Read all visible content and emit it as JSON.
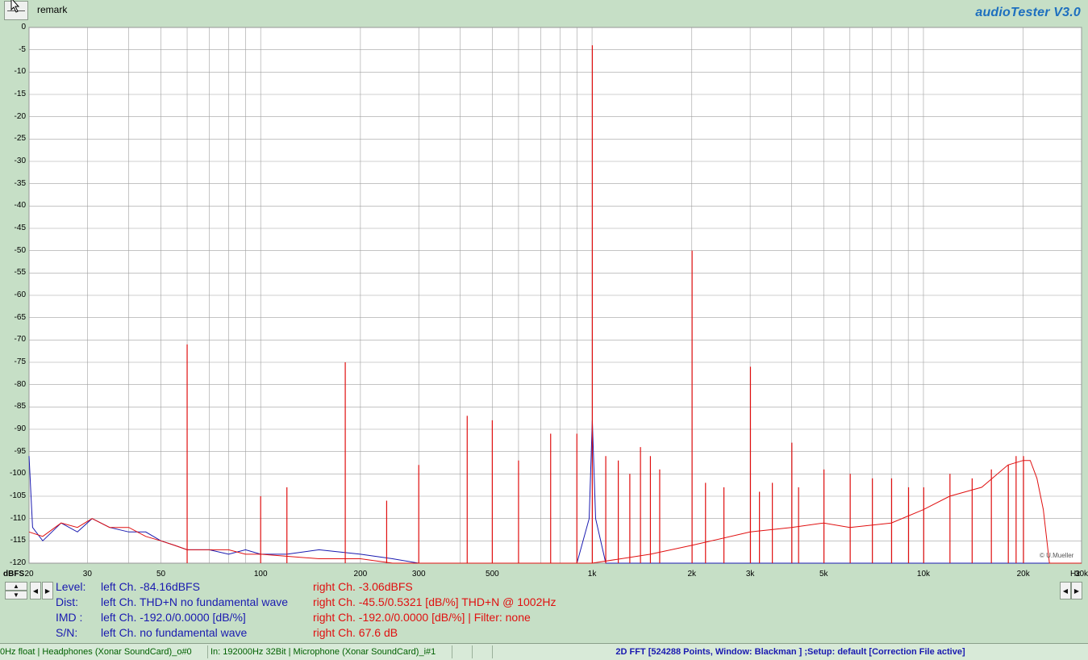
{
  "app": {
    "title": "audioTester  V3.0",
    "remark_label": "remark",
    "credit": "© U.Mueller"
  },
  "colors": {
    "background": "#c6dfc6",
    "plot_bg": "#ffffff",
    "grid": "#a0a0a0",
    "left_channel": "#1a1ab0",
    "right_channel": "#e01010",
    "title": "#1d6fbf"
  },
  "chart_data": {
    "type": "line",
    "title": "",
    "xlabel": "Hz",
    "ylabel": "dBFS",
    "x_scale": "log",
    "xlim": [
      20,
      30000
    ],
    "ylim": [
      -120,
      0
    ],
    "grid": true,
    "x_ticks": [
      {
        "value": 20,
        "label": "20"
      },
      {
        "value": 30,
        "label": "30"
      },
      {
        "value": 50,
        "label": "50"
      },
      {
        "value": 100,
        "label": "100"
      },
      {
        "value": 200,
        "label": "200"
      },
      {
        "value": 300,
        "label": "300"
      },
      {
        "value": 500,
        "label": "500"
      },
      {
        "value": 1000,
        "label": "1k"
      },
      {
        "value": 2000,
        "label": "2k"
      },
      {
        "value": 3000,
        "label": "3k"
      },
      {
        "value": 5000,
        "label": "5k"
      },
      {
        "value": 10000,
        "label": "10k"
      },
      {
        "value": 20000,
        "label": "20k"
      },
      {
        "value": 30000,
        "label": "30k"
      }
    ],
    "y_ticks": [
      0,
      -5,
      -10,
      -15,
      -20,
      -25,
      -30,
      -35,
      -40,
      -45,
      -50,
      -55,
      -60,
      -65,
      -70,
      -75,
      -80,
      -85,
      -90,
      -95,
      -100,
      -105,
      -110,
      -115,
      -120
    ],
    "series": [
      {
        "channel": "left",
        "color": "#1a1ab0",
        "points": [
          [
            20,
            -96
          ],
          [
            20.5,
            -112
          ],
          [
            22,
            -115
          ],
          [
            25,
            -111
          ],
          [
            28,
            -113
          ],
          [
            31,
            -110
          ],
          [
            35,
            -112
          ],
          [
            40,
            -113
          ],
          [
            45,
            -113
          ],
          [
            50,
            -115
          ],
          [
            55,
            -116
          ],
          [
            60,
            -117
          ],
          [
            70,
            -117
          ],
          [
            80,
            -118
          ],
          [
            90,
            -117
          ],
          [
            100,
            -118
          ],
          [
            120,
            -118
          ],
          [
            150,
            -117
          ],
          [
            200,
            -118
          ],
          [
            250,
            -119
          ],
          [
            300,
            -120
          ],
          [
            500,
            -120
          ],
          [
            900,
            -120
          ],
          [
            980,
            -110
          ],
          [
            1002,
            -88
          ],
          [
            1025,
            -110
          ],
          [
            1100,
            -120
          ],
          [
            20000,
            -120
          ],
          [
            30000,
            -120
          ]
        ]
      },
      {
        "channel": "right",
        "color": "#e01010",
        "noise": [
          [
            20,
            -113
          ],
          [
            22,
            -114
          ],
          [
            25,
            -111
          ],
          [
            28,
            -112
          ],
          [
            31,
            -110
          ],
          [
            35,
            -112
          ],
          [
            40,
            -112
          ],
          [
            45,
            -114
          ],
          [
            50,
            -115
          ],
          [
            55,
            -116
          ],
          [
            60,
            -117
          ],
          [
            70,
            -117
          ],
          [
            80,
            -117
          ],
          [
            90,
            -118
          ],
          [
            100,
            -118
          ],
          [
            150,
            -119
          ],
          [
            200,
            -119
          ],
          [
            250,
            -120
          ],
          [
            300,
            -120
          ],
          [
            500,
            -120
          ],
          [
            700,
            -120
          ],
          [
            1000,
            -120
          ],
          [
            1500,
            -118
          ],
          [
            2000,
            -116
          ],
          [
            3000,
            -113
          ],
          [
            4000,
            -112
          ],
          [
            5000,
            -111
          ],
          [
            6000,
            -112
          ],
          [
            8000,
            -111
          ],
          [
            10000,
            -108
          ],
          [
            12000,
            -105
          ],
          [
            15000,
            -103
          ],
          [
            18000,
            -98
          ],
          [
            20000,
            -97
          ],
          [
            21000,
            -97
          ],
          [
            22000,
            -101
          ],
          [
            23000,
            -108
          ],
          [
            24000,
            -120
          ],
          [
            30000,
            -120
          ]
        ],
        "peaks": [
          [
            60,
            -71
          ],
          [
            100,
            -105
          ],
          [
            120,
            -103
          ],
          [
            180,
            -75
          ],
          [
            240,
            -106
          ],
          [
            300,
            -98
          ],
          [
            420,
            -87
          ],
          [
            500,
            -88
          ],
          [
            600,
            -97
          ],
          [
            750,
            -91
          ],
          [
            900,
            -91
          ],
          [
            1002,
            -4
          ],
          [
            1100,
            -96
          ],
          [
            1200,
            -97
          ],
          [
            1300,
            -100
          ],
          [
            1400,
            -94
          ],
          [
            1500,
            -96
          ],
          [
            1600,
            -99
          ],
          [
            2004,
            -50
          ],
          [
            2200,
            -102
          ],
          [
            2500,
            -103
          ],
          [
            3006,
            -76
          ],
          [
            3200,
            -104
          ],
          [
            3500,
            -102
          ],
          [
            4008,
            -93
          ],
          [
            4200,
            -103
          ],
          [
            5010,
            -99
          ],
          [
            6012,
            -100
          ],
          [
            7014,
            -101
          ],
          [
            8016,
            -101
          ],
          [
            9018,
            -103
          ],
          [
            10020,
            -103
          ],
          [
            12024,
            -100
          ],
          [
            14028,
            -101
          ],
          [
            16032,
            -99
          ],
          [
            18036,
            -98
          ],
          [
            19038,
            -96
          ],
          [
            20040,
            -96
          ]
        ]
      }
    ]
  },
  "measurements": {
    "left": {
      "level_label": "Level:",
      "level": "left Ch. -84.16dBFS",
      "dist_label": "Dist:",
      "dist": "left Ch. THD+N  no fundamental wave",
      "imd_label": "IMD  :",
      "imd": "left Ch. -192.0/0.0000 [dB/%]",
      "sn_label": "S/N:",
      "sn": "left Ch.  no fundamental wave"
    },
    "right": {
      "level": "right Ch. -3.06dBFS",
      "dist": "right Ch. -45.5/0.5321 [dB/%] THD+N  @ 1002Hz",
      "imd": "right Ch. -192.0/0.0000 [dB/%] |   Filter: none",
      "sn": "right Ch. 67.6 dB"
    }
  },
  "statusbar": {
    "output": "0Hz float  | Headphones (Xonar SoundCard)_o#0",
    "input": "In: 192000Hz 32Bit  | Microphone (Xonar SoundCard)_i#1",
    "analysis": "2D FFT [524288 Points, Window: Blackman ]  ;Setup:  default  [Correction File active]"
  }
}
